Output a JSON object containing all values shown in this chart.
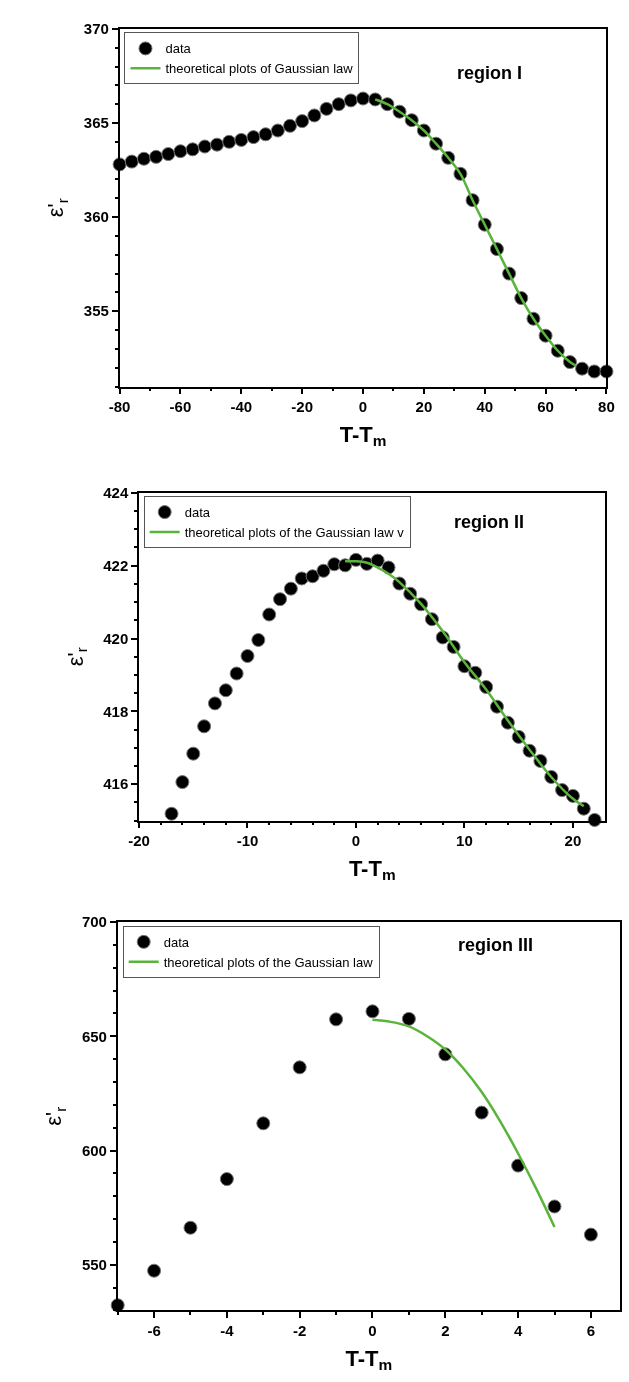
{
  "chart_data": [
    {
      "type": "scatter",
      "xlabel": "T-T$_{m}$",
      "ylabel": "ε'$_{r}$",
      "annotations": [
        "region I"
      ],
      "xlim": [
        -80,
        80
      ],
      "ylim": [
        351,
        370
      ],
      "xticks": [
        -80,
        -60,
        -40,
        -20,
        0,
        20,
        40,
        60,
        80
      ],
      "yticks": [
        355,
        360,
        365,
        370
      ],
      "grid": false,
      "legend": "top left",
      "series": [
        {
          "name": "data",
          "marker": "circle",
          "color": "#000000",
          "x": [
            -80,
            -76,
            -72,
            -68,
            -64,
            -60,
            -56,
            -52,
            -48,
            -44,
            -40,
            -36,
            -32,
            -28,
            -24,
            -20,
            -16,
            -12,
            -8,
            -4,
            0,
            4,
            8,
            12,
            16,
            20,
            24,
            28,
            32,
            36,
            40,
            44,
            48,
            52,
            56,
            60,
            64,
            68,
            72,
            76,
            80
          ],
          "values": [
            362.8,
            362.95,
            363.1,
            363.2,
            363.35,
            363.5,
            363.6,
            363.75,
            363.85,
            364.0,
            364.1,
            364.25,
            364.4,
            364.6,
            364.85,
            365.1,
            365.4,
            365.75,
            366.0,
            366.2,
            366.3,
            366.25,
            366.0,
            365.6,
            365.15,
            364.6,
            363.9,
            363.15,
            362.3,
            360.9,
            359.6,
            358.3,
            357.0,
            355.7,
            354.6,
            353.7,
            352.9,
            352.3,
            351.95,
            351.8,
            351.8
          ]
        },
        {
          "name": "theoretical plots of Gaussian law",
          "type": "line",
          "color": "#5ab43c",
          "x": [
            4,
            8,
            12,
            16,
            20,
            24,
            28,
            32,
            36,
            40,
            44,
            48,
            52,
            56,
            60,
            64,
            68,
            70
          ],
          "values": [
            366.25,
            366.0,
            365.6,
            365.15,
            364.6,
            363.9,
            363.15,
            362.3,
            360.9,
            359.6,
            358.3,
            357.0,
            355.7,
            354.6,
            353.7,
            352.9,
            352.3,
            352.1
          ]
        }
      ]
    },
    {
      "type": "scatter",
      "xlabel": "T-T$_{m}$",
      "ylabel": "ε'$_{r}$",
      "annotations": [
        "region II"
      ],
      "xlim": [
        -20,
        23
      ],
      "ylim": [
        415,
        424
      ],
      "xticks": [
        -20,
        -10,
        0,
        10,
        20
      ],
      "yticks": [
        416,
        418,
        420,
        422,
        424
      ],
      "grid": false,
      "legend": "top left",
      "series": [
        {
          "name": "data",
          "marker": "circle",
          "color": "#000000",
          "x": [
            -17,
            -16,
            -15,
            -14,
            -13,
            -12,
            -11,
            -10,
            -9,
            -8,
            -7,
            -6,
            -5,
            -4,
            -3,
            -2,
            -1,
            0,
            1,
            2,
            3,
            4,
            5,
            6,
            7,
            8,
            9,
            10,
            11,
            12,
            13,
            14,
            15,
            16,
            17,
            18,
            19,
            20,
            21,
            22
          ],
          "values": [
            415.19,
            416.06,
            416.84,
            417.59,
            418.22,
            418.58,
            419.04,
            419.52,
            419.96,
            420.66,
            421.08,
            421.37,
            421.65,
            421.71,
            421.86,
            422.04,
            422.01,
            422.16,
            422.05,
            422.14,
            421.95,
            421.51,
            421.23,
            420.94,
            420.53,
            420.03,
            419.77,
            419.24,
            419.06,
            418.67,
            418.13,
            417.69,
            417.3,
            416.92,
            416.64,
            416.2,
            415.84,
            415.68,
            415.33,
            415.02
          ]
        },
        {
          "name": "theoretical plots of the Gaussian law v",
          "type": "line",
          "color": "#5ab43c",
          "x": [
            -1,
            0,
            1,
            2,
            3,
            4,
            6,
            8,
            10,
            12,
            14,
            16,
            18,
            20,
            21
          ],
          "values": [
            422.12,
            422.12,
            422.08,
            421.95,
            421.78,
            421.55,
            420.95,
            420.2,
            419.35,
            418.6,
            417.75,
            416.95,
            416.2,
            415.6,
            415.4
          ]
        }
      ]
    },
    {
      "type": "scatter",
      "xlabel": "T-T$_{m}$",
      "ylabel": "ε'$_{r}$",
      "annotations": [
        "region III"
      ],
      "xlim": [
        -7,
        6.8
      ],
      "ylim": [
        530,
        700
      ],
      "xticks": [
        -6,
        -4,
        -2,
        0,
        2,
        4,
        6
      ],
      "yticks": [
        550,
        600,
        650,
        700
      ],
      "grid": false,
      "legend": "top left",
      "series": [
        {
          "name": "data",
          "marker": "circle",
          "color": "#000000",
          "x": [
            -7,
            -6,
            -5,
            -4,
            -3,
            -2,
            -1,
            0,
            1,
            2,
            3,
            4,
            5,
            6
          ],
          "values": [
            532.3,
            547.4,
            566.2,
            587.5,
            611.9,
            636.4,
            657.4,
            660.9,
            657.6,
            642.1,
            616.6,
            593.4,
            575.5,
            563.2
          ]
        },
        {
          "name": "theoretical plots of the Gaussian law",
          "type": "line",
          "color": "#5ab43c",
          "x": [
            0,
            0.5,
            1,
            1.5,
            2,
            2.5,
            3,
            3.5,
            4,
            4.5,
            5
          ],
          "values": [
            657.2,
            656.3,
            654.3,
            650.0,
            644.2,
            635.9,
            625.6,
            613.0,
            598.7,
            583.2,
            566.5
          ]
        }
      ]
    }
  ]
}
